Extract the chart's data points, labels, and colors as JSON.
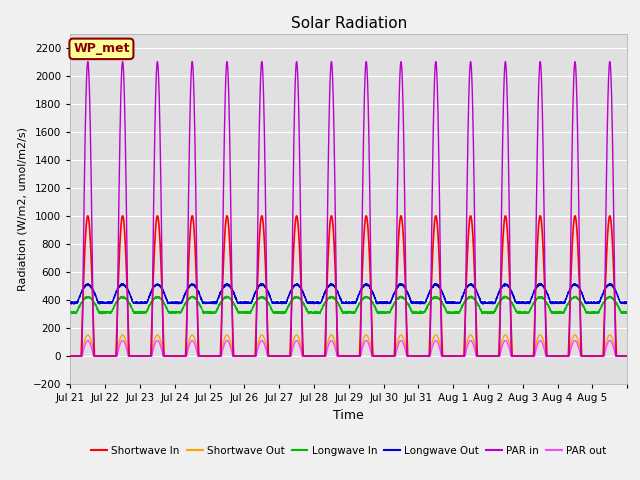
{
  "title": "Solar Radiation",
  "ylabel": "Radiation (W/m2, umol/m2/s)",
  "xlabel": "Time",
  "ylim": [
    -200,
    2300
  ],
  "yticks": [
    -200,
    0,
    200,
    400,
    600,
    800,
    1000,
    1200,
    1400,
    1600,
    1800,
    2000,
    2200
  ],
  "fig_bg_color": "#f0f0f0",
  "plot_bg_color": "#e0e0e0",
  "annotation_text": "WP_met",
  "annotation_bg": "#ffff99",
  "annotation_border": "#8b0000",
  "annotation_text_color": "#8b0000",
  "num_days": 16,
  "day_labels": [
    "Jul 21",
    "Jul 22",
    "Jul 23",
    "Jul 24",
    "Jul 25",
    "Jul 26",
    "Jul 27",
    "Jul 28",
    "Jul 29",
    "Jul 30",
    "Jul 31",
    "Aug 1",
    "Aug 2",
    "Aug 3",
    "Aug 4",
    "Aug 5"
  ],
  "series": {
    "shortwave_in": {
      "color": "#ff0000",
      "label": "Shortwave In"
    },
    "shortwave_out": {
      "color": "#ffa500",
      "label": "Shortwave Out"
    },
    "longwave_in": {
      "color": "#00bb00",
      "label": "Longwave In"
    },
    "longwave_out": {
      "color": "#0000dd",
      "label": "Longwave Out"
    },
    "par_in": {
      "color": "#bb00cc",
      "label": "PAR in"
    },
    "par_out": {
      "color": "#ff44ff",
      "label": "PAR out"
    }
  }
}
